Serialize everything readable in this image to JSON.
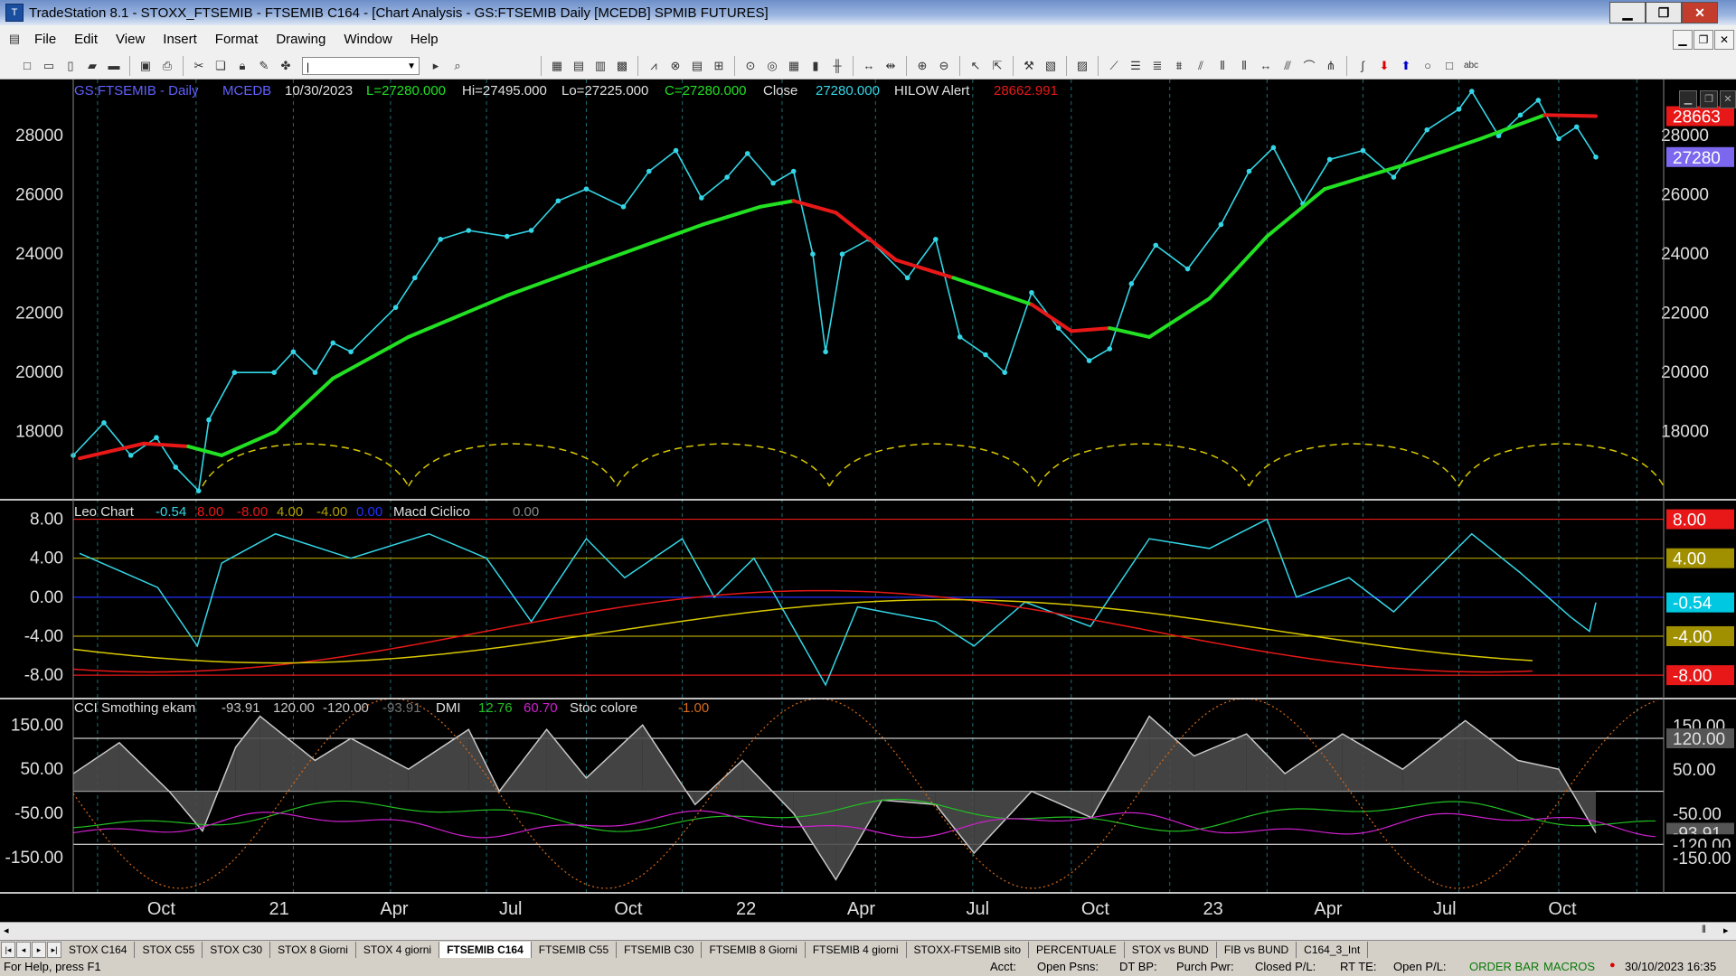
{
  "window": {
    "title": "TradeStation 8.1 - STOXX_FTSEMIB - FTSEMIB C164 - [Chart Analysis - GS:FTSEMIB  Daily  [MCEDB] SPMIB FUTURES]",
    "controls": [
      "▁",
      "❐",
      "✕"
    ],
    "mdi_controls": [
      "▁",
      "❐",
      "✕"
    ]
  },
  "menu": [
    "File",
    "Edit",
    "View",
    "Insert",
    "Format",
    "Drawing",
    "Window",
    "Help"
  ],
  "toolbar": {
    "combo_value": "|"
  },
  "price_panel": {
    "symbol": "GS:FTSEMIB - Daily",
    "datafeed": "MCEDB",
    "date": "10/30/2023",
    "last": "L=27280.000",
    "hi": "Hi=27495.000",
    "lo": "Lo=27225.000",
    "close_eq": "C=27280.000",
    "close_label": "Close",
    "close_value": "27280.000",
    "indicator": "HILOW Alert",
    "indicator_value": "28662.991",
    "right_labels": [
      "28663",
      "27280"
    ]
  },
  "macd_panel": {
    "name": "Leo Chart",
    "values": [
      "-0.54",
      "8.00",
      "-8.00",
      "4.00",
      "-4.00",
      "0.00"
    ],
    "indicator": "Macd Ciclico",
    "indicator_value": "0.00",
    "right_labels": [
      "8.00",
      "4.00",
      "-0.54",
      "-4.00",
      "-8.00"
    ]
  },
  "cci_panel": {
    "name": "CCI Smothing ekam",
    "values": [
      "-93.91",
      "120.00",
      "-120.00",
      "-93.91"
    ],
    "dmi_label": "DMI",
    "dmi_values": [
      "12.76",
      "60.70"
    ],
    "stoc_label": "Stoc colore",
    "stoc_value": "-1.00",
    "right_labels": [
      "150.00",
      "120.00",
      "50.00",
      "-50.00",
      "-93.91",
      "-120.00",
      "-150.00"
    ]
  },
  "date_axis": [
    "Oct",
    "21",
    "Apr",
    "Jul",
    "Oct",
    "22",
    "Apr",
    "Jul",
    "Oct",
    "23",
    "Apr",
    "Jul",
    "Oct"
  ],
  "tabs": [
    "STOX C164",
    "STOX C55",
    "STOX  C30",
    "STOX  8 Giorni",
    "STOX 4 giorni",
    "FTSEMIB C164",
    "FTSEMIB C55",
    "FTSEMIB C30",
    "FTSEMIB  8 Giorni",
    "FTSEMIB  4 giorni",
    "STOXX-FTSEMIB sito",
    "PERCENTUALE",
    "STOX vs BUND",
    "FIB vs BUND",
    "C164_3_Int"
  ],
  "active_tab": "FTSEMIB C164",
  "status": {
    "help": "For Help, press F1",
    "fields": [
      "Acct:",
      "Open Psns:",
      "DT BP:",
      "Purch Pwr:",
      "Closed P/L:",
      "RT TE:",
      "Open P/L:"
    ],
    "order_bar": "ORDER BAR",
    "macros": "MACROS",
    "datetime": "30/10/2023 16:35"
  },
  "colors": {
    "price": "#33d6e6",
    "ma_up": "#22e022",
    "ma_down": "#e81818",
    "cycle": "#d8c800",
    "cci": "#c8c8c8",
    "dmi_plus": "#22c022",
    "dmi_minus": "#d020d0",
    "stoc": "#d86a18"
  },
  "chart_data": [
    {
      "type": "line",
      "title": "GS:FTSEMIB - Daily",
      "x_range": [
        "2020-07-27",
        "2023-12-22"
      ],
      "ylim": [
        15700,
        29900
      ],
      "yticks": [
        18000,
        20000,
        22000,
        24000,
        26000,
        28000
      ],
      "series": [
        {
          "name": "Close",
          "points": [
            [
              "2020-07-27",
              17200
            ],
            [
              "2020-08-20",
              18300
            ],
            [
              "2020-09-10",
              17200
            ],
            [
              "2020-09-30",
              17800
            ],
            [
              "2020-10-15",
              16800
            ],
            [
              "2020-11-02",
              16000
            ],
            [
              "2020-11-10",
              18400
            ],
            [
              "2020-11-30",
              20000
            ],
            [
              "2020-12-31",
              20000
            ],
            [
              "2021-01-15",
              20700
            ],
            [
              "2021-02-01",
              20000
            ],
            [
              "2021-02-15",
              21000
            ],
            [
              "2021-03-01",
              20700
            ],
            [
              "2021-04-05",
              22200
            ],
            [
              "2021-04-20",
              23200
            ],
            [
              "2021-05-10",
              24500
            ],
            [
              "2021-06-01",
              24800
            ],
            [
              "2021-07-01",
              24600
            ],
            [
              "2021-07-20",
              24800
            ],
            [
              "2021-08-10",
              25800
            ],
            [
              "2021-09-01",
              26200
            ],
            [
              "2021-09-30",
              25600
            ],
            [
              "2021-10-20",
              26800
            ],
            [
              "2021-11-10",
              27500
            ],
            [
              "2021-11-30",
              25900
            ],
            [
              "2021-12-20",
              26600
            ],
            [
              "2022-01-05",
              27400
            ],
            [
              "2022-01-25",
              26400
            ],
            [
              "2022-02-10",
              26800
            ],
            [
              "2022-02-25",
              24000
            ],
            [
              "2022-03-07",
              20700
            ],
            [
              "2022-03-20",
              24000
            ],
            [
              "2022-04-10",
              24500
            ],
            [
              "2022-05-10",
              23200
            ],
            [
              "2022-06-01",
              24500
            ],
            [
              "2022-06-20",
              21200
            ],
            [
              "2022-07-10",
              20600
            ],
            [
              "2022-07-25",
              20000
            ],
            [
              "2022-08-15",
              22700
            ],
            [
              "2022-09-05",
              21500
            ],
            [
              "2022-09-29",
              20400
            ],
            [
              "2022-10-15",
              20800
            ],
            [
              "2022-11-01",
              23000
            ],
            [
              "2022-11-20",
              24300
            ],
            [
              "2022-12-15",
              23500
            ],
            [
              "2023-01-10",
              25000
            ],
            [
              "2023-02-01",
              26800
            ],
            [
              "2023-02-20",
              27600
            ],
            [
              "2023-03-15",
              25700
            ],
            [
              "2023-04-05",
              27200
            ],
            [
              "2023-05-01",
              27500
            ],
            [
              "2023-05-25",
              26600
            ],
            [
              "2023-06-20",
              28200
            ],
            [
              "2023-07-15",
              28900
            ],
            [
              "2023-07-25",
              29500
            ],
            [
              "2023-08-15",
              28000
            ],
            [
              "2023-09-01",
              28700
            ],
            [
              "2023-09-15",
              29200
            ],
            [
              "2023-10-01",
              27900
            ],
            [
              "2023-10-15",
              28300
            ],
            [
              "2023-10-30",
              27280
            ]
          ]
        },
        {
          "name": "HILOW Alert",
          "points": [
            [
              "2020-08-01",
              17100
            ],
            [
              "2020-09-20",
              17600
            ],
            [
              "2020-10-25",
              17500
            ],
            [
              "2020-11-20",
              17200
            ],
            [
              "2021-01-01",
              18000
            ],
            [
              "2021-02-15",
              19800
            ],
            [
              "2021-04-15",
              21200
            ],
            [
              "2021-07-01",
              22600
            ],
            [
              "2021-09-15",
              23800
            ],
            [
              "2021-12-01",
              25000
            ],
            [
              "2022-01-15",
              25600
            ],
            [
              "2022-02-10",
              25800
            ],
            [
              "2022-03-15",
              25400
            ],
            [
              "2022-05-01",
              23800
            ],
            [
              "2022-06-15",
              23200
            ],
            [
              "2022-08-15",
              22300
            ],
            [
              "2022-09-15",
              21400
            ],
            [
              "2022-10-15",
              21500
            ],
            [
              "2022-11-15",
              21200
            ],
            [
              "2023-01-01",
              22500
            ],
            [
              "2023-02-15",
              24600
            ],
            [
              "2023-04-01",
              26200
            ],
            [
              "2023-06-01",
              27000
            ],
            [
              "2023-08-01",
              27900
            ],
            [
              "2023-09-20",
              28700
            ],
            [
              "2023-10-30",
              28663
            ]
          ]
        }
      ],
      "right_markers": [
        28663,
        27280
      ]
    },
    {
      "type": "line",
      "title": "Leo Chart",
      "ylim": [
        -10.4,
        10.0
      ],
      "yticks": [
        8.0,
        4.0,
        0.0,
        -4.0,
        -8.0
      ],
      "hlines": [
        8.0,
        4.0,
        0.0,
        -4.0,
        -8.0
      ],
      "series": [
        {
          "name": "Macd Ciclico",
          "points": [
            [
              "2020-08-01",
              4.5
            ],
            [
              "2020-10-01",
              1.0
            ],
            [
              "2020-11-01",
              -5.0
            ],
            [
              "2020-11-20",
              3.5
            ],
            [
              "2021-01-01",
              6.5
            ],
            [
              "2021-03-01",
              4.0
            ],
            [
              "2021-05-01",
              6.5
            ],
            [
              "2021-06-15",
              4.0
            ],
            [
              "2021-07-20",
              -2.5
            ],
            [
              "2021-09-01",
              6.0
            ],
            [
              "2021-10-01",
              2.0
            ],
            [
              "2021-11-15",
              6.0
            ],
            [
              "2021-12-10",
              0.0
            ],
            [
              "2022-01-10",
              4.0
            ],
            [
              "2022-03-07",
              -9.0
            ],
            [
              "2022-04-01",
              -1.0
            ],
            [
              "2022-06-01",
              -2.5
            ],
            [
              "2022-07-01",
              -5.0
            ],
            [
              "2022-08-10",
              -0.5
            ],
            [
              "2022-09-30",
              -3.0
            ],
            [
              "2022-11-15",
              6.0
            ],
            [
              "2023-01-01",
              5.0
            ],
            [
              "2023-02-15",
              8.0
            ],
            [
              "2023-03-10",
              0.0
            ],
            [
              "2023-04-20",
              2.0
            ],
            [
              "2023-05-25",
              -1.5
            ],
            [
              "2023-07-25",
              6.5
            ],
            [
              "2023-09-01",
              2.5
            ],
            [
              "2023-10-10",
              -2.0
            ],
            [
              "2023-10-25",
              -3.5
            ],
            [
              "2023-10-30",
              -0.54
            ]
          ]
        }
      ],
      "right_markers": [
        8.0,
        4.0,
        -0.54,
        -4.0,
        -8.0
      ]
    },
    {
      "type": "line",
      "title": "CCI Smothing ekam",
      "ylim": [
        -230,
        210
      ],
      "yticks": [
        150,
        50,
        -50,
        -150
      ],
      "hlines": [
        120,
        0,
        -120
      ],
      "series": [
        {
          "name": "CCI Smothing ekam",
          "points": [
            [
              "2020-07-27",
              40
            ],
            [
              "2020-09-01",
              110
            ],
            [
              "2020-10-10",
              0
            ],
            [
              "2020-11-05",
              -90
            ],
            [
              "2020-12-01",
              100
            ],
            [
              "2020-12-20",
              170
            ],
            [
              "2021-02-01",
              70
            ],
            [
              "2021-03-01",
              120
            ],
            [
              "2021-04-15",
              50
            ],
            [
              "2021-06-01",
              140
            ],
            [
              "2021-06-25",
              0
            ],
            [
              "2021-08-01",
              140
            ],
            [
              "2021-09-01",
              30
            ],
            [
              "2021-10-15",
              150
            ],
            [
              "2021-11-25",
              -30
            ],
            [
              "2022-01-01",
              70
            ],
            [
              "2022-02-10",
              -50
            ],
            [
              "2022-03-15",
              -200
            ],
            [
              "2022-04-20",
              -20
            ],
            [
              "2022-06-01",
              -30
            ],
            [
              "2022-07-01",
              -140
            ],
            [
              "2022-08-15",
              0
            ],
            [
              "2022-10-01",
              -60
            ],
            [
              "2022-11-15",
              170
            ],
            [
              "2022-12-20",
              80
            ],
            [
              "2023-01-30",
              130
            ],
            [
              "2023-03-01",
              40
            ],
            [
              "2023-04-15",
              130
            ],
            [
              "2023-06-01",
              50
            ],
            [
              "2023-07-20",
              160
            ],
            [
              "2023-08-30",
              70
            ],
            [
              "2023-10-01",
              50
            ],
            [
              "2023-10-30",
              -93.91
            ]
          ]
        }
      ],
      "right_markers": [
        150,
        120,
        50,
        -50,
        -93.91,
        -120,
        -150
      ]
    }
  ]
}
